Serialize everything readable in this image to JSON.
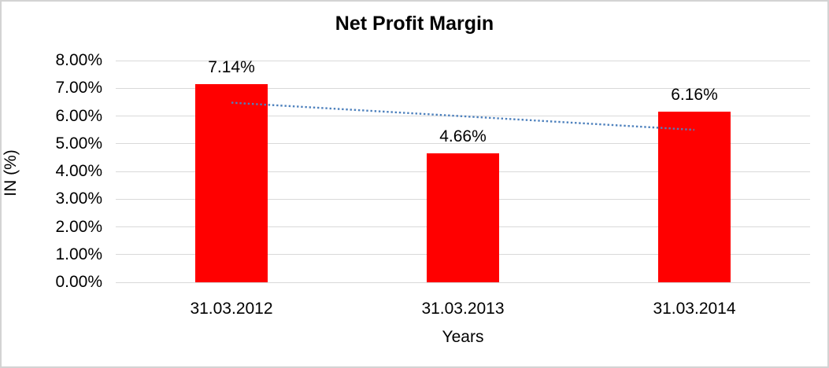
{
  "chart_data": {
    "type": "bar",
    "title": "Net Profit Margin",
    "xlabel": "Years",
    "ylabel": "IN (%)",
    "categories": [
      "31.03.2012",
      "31.03.2013",
      "31.03.2014"
    ],
    "values": [
      7.14,
      4.66,
      6.16
    ],
    "data_labels": [
      "7.14%",
      "4.66%",
      "6.16%"
    ],
    "ylim": [
      0,
      8
    ],
    "yticks": [
      {
        "value": 0,
        "label": "0.00%"
      },
      {
        "value": 1,
        "label": "1.00%"
      },
      {
        "value": 2,
        "label": "2.00%"
      },
      {
        "value": 3,
        "label": "3.00%"
      },
      {
        "value": 4,
        "label": "4.00%"
      },
      {
        "value": 5,
        "label": "5.00%"
      },
      {
        "value": 6,
        "label": "6.00%"
      },
      {
        "value": 7,
        "label": "7.00%"
      },
      {
        "value": 8,
        "label": "8.00%"
      }
    ],
    "grid": true,
    "legend_position": "none",
    "colors": {
      "bar": "#FF0000",
      "gridline": "#D9D9D9",
      "text": "#000000",
      "trendline": "#4E81BD",
      "chart_border": "#D3D3D3"
    },
    "trendline": {
      "style": "dotted",
      "shape": "linear",
      "start": {
        "category_index": 0,
        "value": 6.48
      },
      "end": {
        "category_index": 2,
        "value": 5.5
      }
    }
  }
}
